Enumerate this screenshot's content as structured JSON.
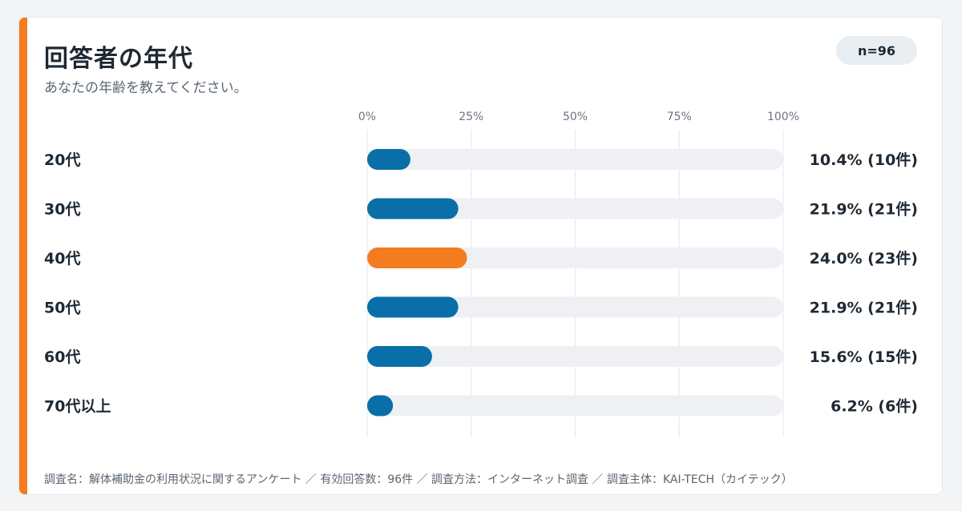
{
  "header": {
    "title": "回答者の年代",
    "subtitle": "あなたの年齢を教えてください。",
    "n_badge": "n=96"
  },
  "colors": {
    "accent": "#f47c20",
    "bar_default": "#0a6fa8",
    "bar_highlight": "#f47c20",
    "track": "#eef0f3",
    "grid": "#e3e8ee"
  },
  "chart_data": {
    "type": "bar",
    "orientation": "horizontal",
    "categories": [
      "20代",
      "30代",
      "40代",
      "50代",
      "60代",
      "70代以上"
    ],
    "values": [
      10.4,
      21.9,
      24.0,
      21.9,
      15.6,
      6.2
    ],
    "value_labels": [
      "10.4% (10件)",
      "21.9% (21件)",
      "24.0% (23件)",
      "21.9% (21件)",
      "15.6% (15件)",
      "6.2% (6件)"
    ],
    "highlight_index": 2,
    "ticks": [
      "0%",
      "25%",
      "50%",
      "75%",
      "100%"
    ],
    "xlim": [
      0,
      100
    ],
    "grid": true
  },
  "footer": {
    "text": "調査名：解体補助金の利用状況に関するアンケート ／ 有効回答数：96件 ／ 調査方法：インターネット調査 ／ 調査主体：KAI-TECH（カイテック）"
  }
}
